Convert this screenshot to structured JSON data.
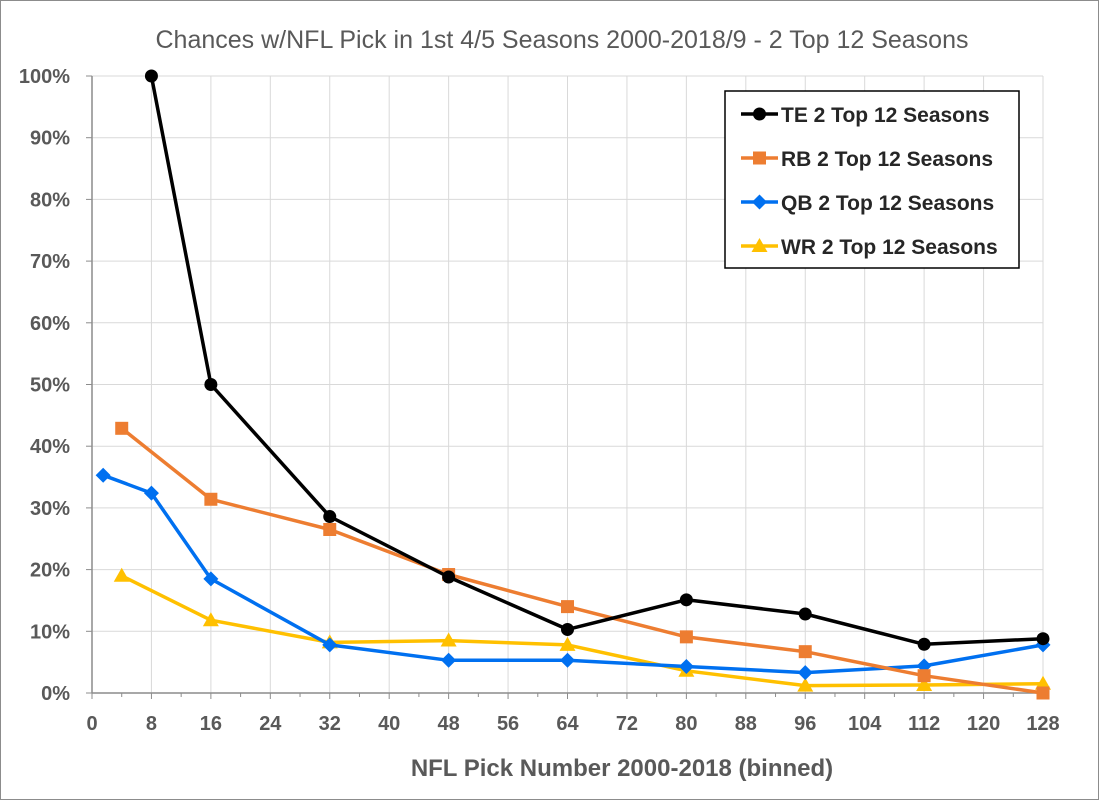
{
  "chart_data": {
    "type": "line",
    "title": "Chances w/NFL Pick in 1st 4/5 Seasons 2000-2018/9 - 2 Top 12 Seasons",
    "xlabel": "NFL Pick Number 2000-2018 (binned)",
    "ylabel": "",
    "xlim": [
      0,
      128
    ],
    "ylim": [
      0,
      1
    ],
    "x_ticks": [
      "0",
      "8",
      "16",
      "24",
      "32",
      "40",
      "48",
      "56",
      "64",
      "72",
      "80",
      "88",
      "96",
      "104",
      "112",
      "120",
      "128"
    ],
    "y_ticks": [
      "0%",
      "10%",
      "20%",
      "30%",
      "40%",
      "50%",
      "60%",
      "70%",
      "80%",
      "90%",
      "100%"
    ],
    "grid": true,
    "legend_position": "top-right",
    "series": [
      {
        "name": "TE 2 Top 12 Seasons",
        "color": "#000000",
        "marker": "circle",
        "x": [
          8,
          16,
          32,
          48,
          64,
          80,
          96,
          112,
          128
        ],
        "values": [
          1.0,
          0.5,
          0.286,
          0.188,
          0.103,
          0.151,
          0.128,
          0.079,
          0.088
        ]
      },
      {
        "name": "RB 2 Top 12 Seasons",
        "color": "#ED7D31",
        "marker": "square",
        "x": [
          4,
          16,
          32,
          48,
          64,
          80,
          96,
          112,
          128
        ],
        "values": [
          0.429,
          0.314,
          0.265,
          0.192,
          0.14,
          0.091,
          0.067,
          0.028,
          0.0
        ]
      },
      {
        "name": "QB 2 Top 12 Seasons",
        "color": "#0070F0",
        "marker": "diamond",
        "x": [
          1.5,
          8,
          16,
          32,
          48,
          64,
          80,
          96,
          112,
          128
        ],
        "values": [
          0.353,
          0.324,
          0.185,
          0.078,
          0.053,
          0.053,
          0.043,
          0.033,
          0.044,
          0.078
        ]
      },
      {
        "name": "WR 2 Top 12 Seasons",
        "color": "#FFC000",
        "marker": "triangle",
        "x": [
          4,
          16,
          32,
          48,
          64,
          80,
          96,
          112,
          128
        ],
        "values": [
          0.19,
          0.118,
          0.082,
          0.085,
          0.078,
          0.036,
          0.012,
          0.013,
          0.015
        ]
      }
    ]
  }
}
